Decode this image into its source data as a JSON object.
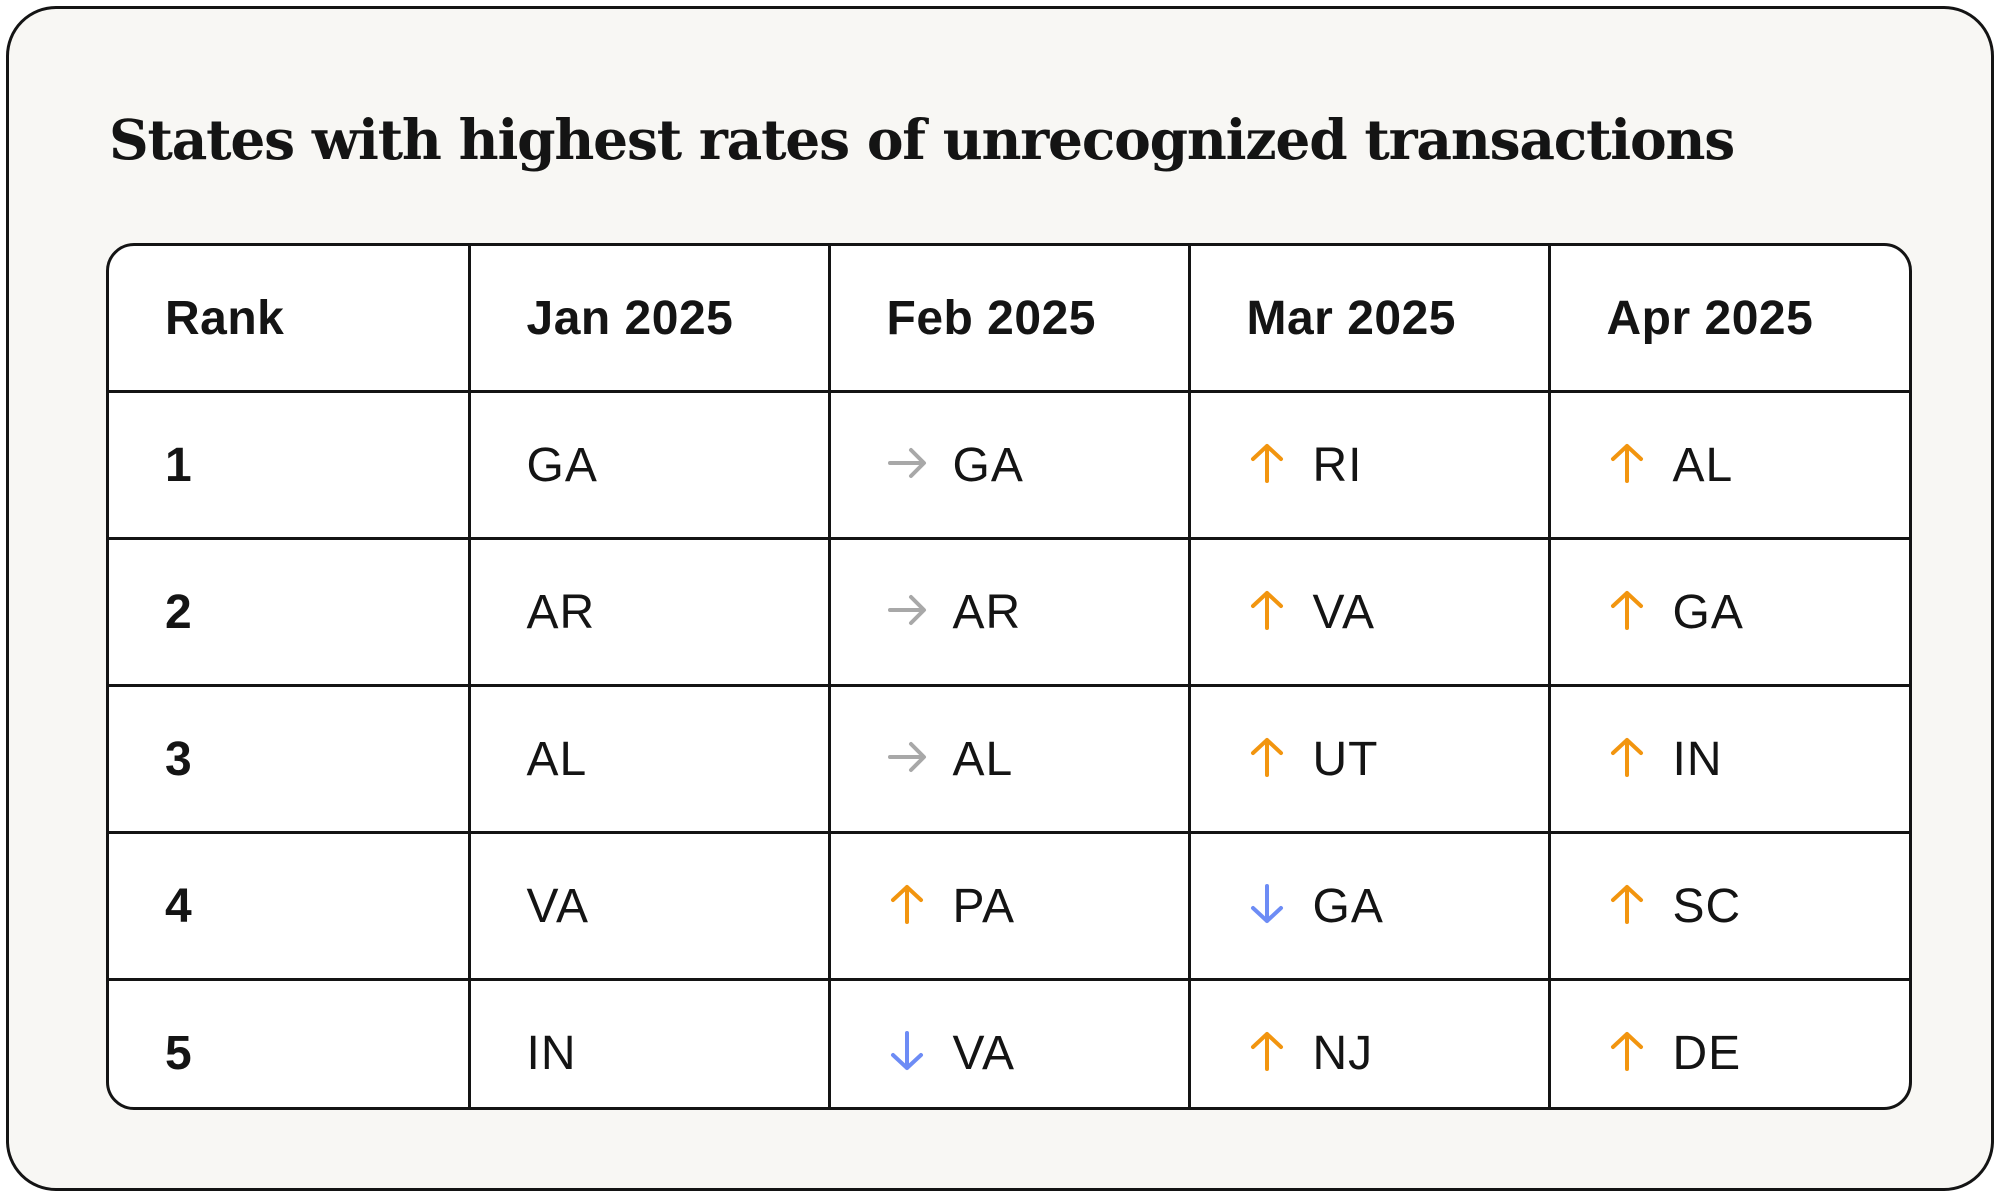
{
  "colors": {
    "up": "#f2950f",
    "down": "#6d8cf5",
    "same": "#a8a8a8",
    "text": "#141414",
    "card_bg": "#f8f7f4"
  },
  "chart_data": {
    "type": "table",
    "title": "States with highest rates of unrecognized transactions",
    "columns": [
      "Rank",
      "Jan 2025",
      "Feb 2025",
      "Mar 2025",
      "Apr 2025"
    ],
    "rows": [
      {
        "rank": "1",
        "cells": [
          {
            "state": "GA",
            "trend": "none"
          },
          {
            "state": "GA",
            "trend": "same"
          },
          {
            "state": "RI",
            "trend": "up"
          },
          {
            "state": "AL",
            "trend": "up"
          }
        ]
      },
      {
        "rank": "2",
        "cells": [
          {
            "state": "AR",
            "trend": "none"
          },
          {
            "state": "AR",
            "trend": "same"
          },
          {
            "state": "VA",
            "trend": "up"
          },
          {
            "state": "GA",
            "trend": "up"
          }
        ]
      },
      {
        "rank": "3",
        "cells": [
          {
            "state": "AL",
            "trend": "none"
          },
          {
            "state": "AL",
            "trend": "same"
          },
          {
            "state": "UT",
            "trend": "up"
          },
          {
            "state": "IN",
            "trend": "up"
          }
        ]
      },
      {
        "rank": "4",
        "cells": [
          {
            "state": "VA",
            "trend": "none"
          },
          {
            "state": "PA",
            "trend": "up"
          },
          {
            "state": "GA",
            "trend": "down"
          },
          {
            "state": "SC",
            "trend": "up"
          }
        ]
      },
      {
        "rank": "5",
        "cells": [
          {
            "state": "IN",
            "trend": "none"
          },
          {
            "state": "VA",
            "trend": "down"
          },
          {
            "state": "NJ",
            "trend": "up"
          },
          {
            "state": "DE",
            "trend": "up"
          }
        ]
      }
    ]
  }
}
